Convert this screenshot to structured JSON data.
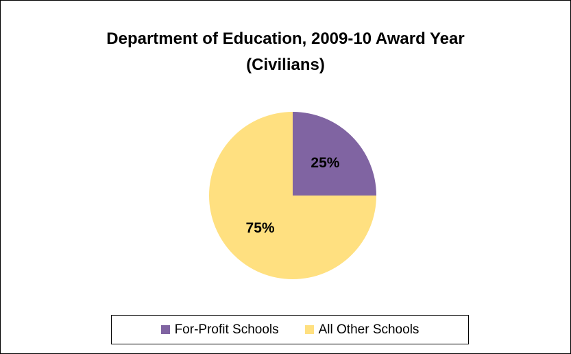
{
  "chart_data": {
    "type": "pie",
    "title_lines": [
      "Department of Education, 2009-10 Award Year",
      "(Civilians)"
    ],
    "slices": [
      {
        "label": "For-Profit Schools",
        "value": 25,
        "display": "25%",
        "color": "#8064a2"
      },
      {
        "label": "All Other Schools",
        "value": 75,
        "display": "75%",
        "color": "#ffe080"
      }
    ],
    "legend_position": "bottom"
  }
}
